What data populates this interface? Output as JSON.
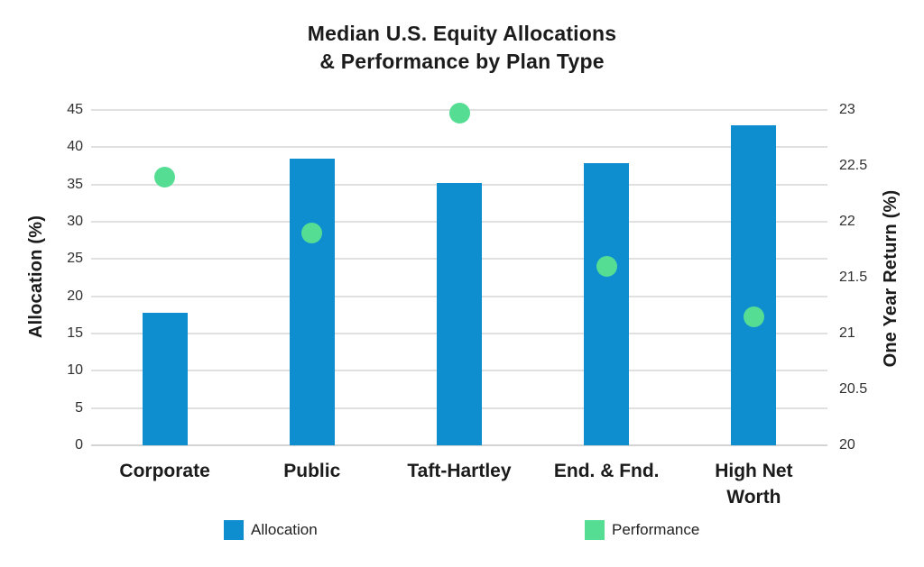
{
  "chart_data": {
    "type": "combo",
    "title": "Median U.S. Equity Allocations & Performance by Plan Type",
    "title_display": "Median U.S. Equity Allocations\n& Performance by Plan Type",
    "categories": [
      "Corporate",
      "Public",
      "Taft-Hartley",
      "End. & Fnd.",
      "High Net Worth"
    ],
    "categories_display": [
      "Corporate",
      "Public",
      "Taft-Hartley",
      "End. & Fnd.",
      "High Net\nWorth"
    ],
    "series": [
      {
        "name": "Allocation",
        "type": "bar",
        "axis": "left",
        "color": "#0e8ecf",
        "values": [
          17.8,
          38.5,
          35.2,
          37.9,
          43.0
        ]
      },
      {
        "name": "Performance",
        "type": "scatter",
        "axis": "right",
        "color": "#55dd94",
        "values": [
          22.4,
          21.9,
          22.97,
          21.6,
          21.15
        ]
      }
    ],
    "left_axis": {
      "label": "Allocation (%)",
      "min": 0,
      "max": 45,
      "tick_labels": [
        "0",
        "5",
        "10",
        "15",
        "20",
        "25",
        "30",
        "35",
        "40",
        "45"
      ]
    },
    "right_axis": {
      "label": "One Year Return (%)",
      "min": 20,
      "max": 23,
      "tick_labels": [
        "20",
        "20.5",
        "21",
        "21.5",
        "22",
        "22.5",
        "23"
      ]
    },
    "grid": true,
    "legend_position": "bottom"
  },
  "legend": {
    "items": [
      {
        "label": "Allocation",
        "color": "#0e8ecf"
      },
      {
        "label": "Performance",
        "color": "#55dd94"
      }
    ]
  },
  "colors": {
    "bar": "#0e8ecf",
    "marker": "#55dd94",
    "gridline": "#e0e0e0",
    "baseline": "#d4d4d4",
    "title_text": "#1b1b1b",
    "tick_text": "#2f2f2f",
    "background": "#ffffff"
  }
}
